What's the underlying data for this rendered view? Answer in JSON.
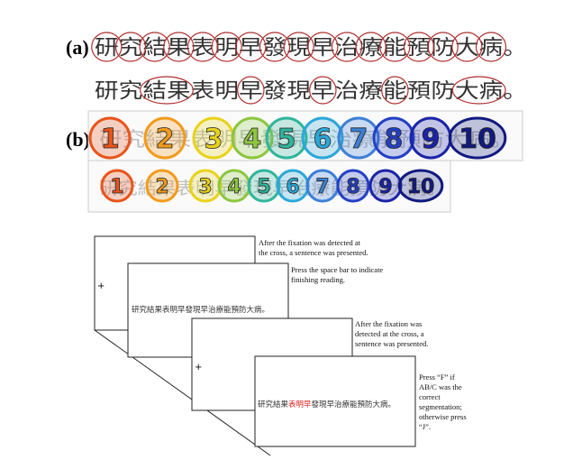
{
  "panel_a": {
    "label": "(a)",
    "sentence": "研究結果表明早發現早治療能預防大病。"
  },
  "panel_b": {
    "label": "(b)",
    "numbers": [
      "1",
      "2",
      "3",
      "4",
      "5",
      "6",
      "7",
      "8",
      "9",
      "10"
    ]
  },
  "procedure": {
    "screens": [
      {
        "content": "+",
        "caption": [
          "After the fixation was detected at",
          "the cross, a sentence was presented."
        ]
      },
      {
        "content": "研究結果表明早發現早治療能預防大病。",
        "caption": [
          "Press the space bar to indicate",
          "finishing reading."
        ]
      },
      {
        "content": "+",
        "caption": [
          "After the fixation was",
          "detected at the cross, a",
          "sentence was presented."
        ]
      },
      {
        "content_parts": [
          "研究結果",
          "表明早",
          "發現早治療能預防大病。"
        ],
        "caption": [
          "Press “F” if",
          "AB/C was the",
          "correct",
          "segmentation;",
          "otherwise press",
          "“J”."
        ]
      }
    ]
  }
}
